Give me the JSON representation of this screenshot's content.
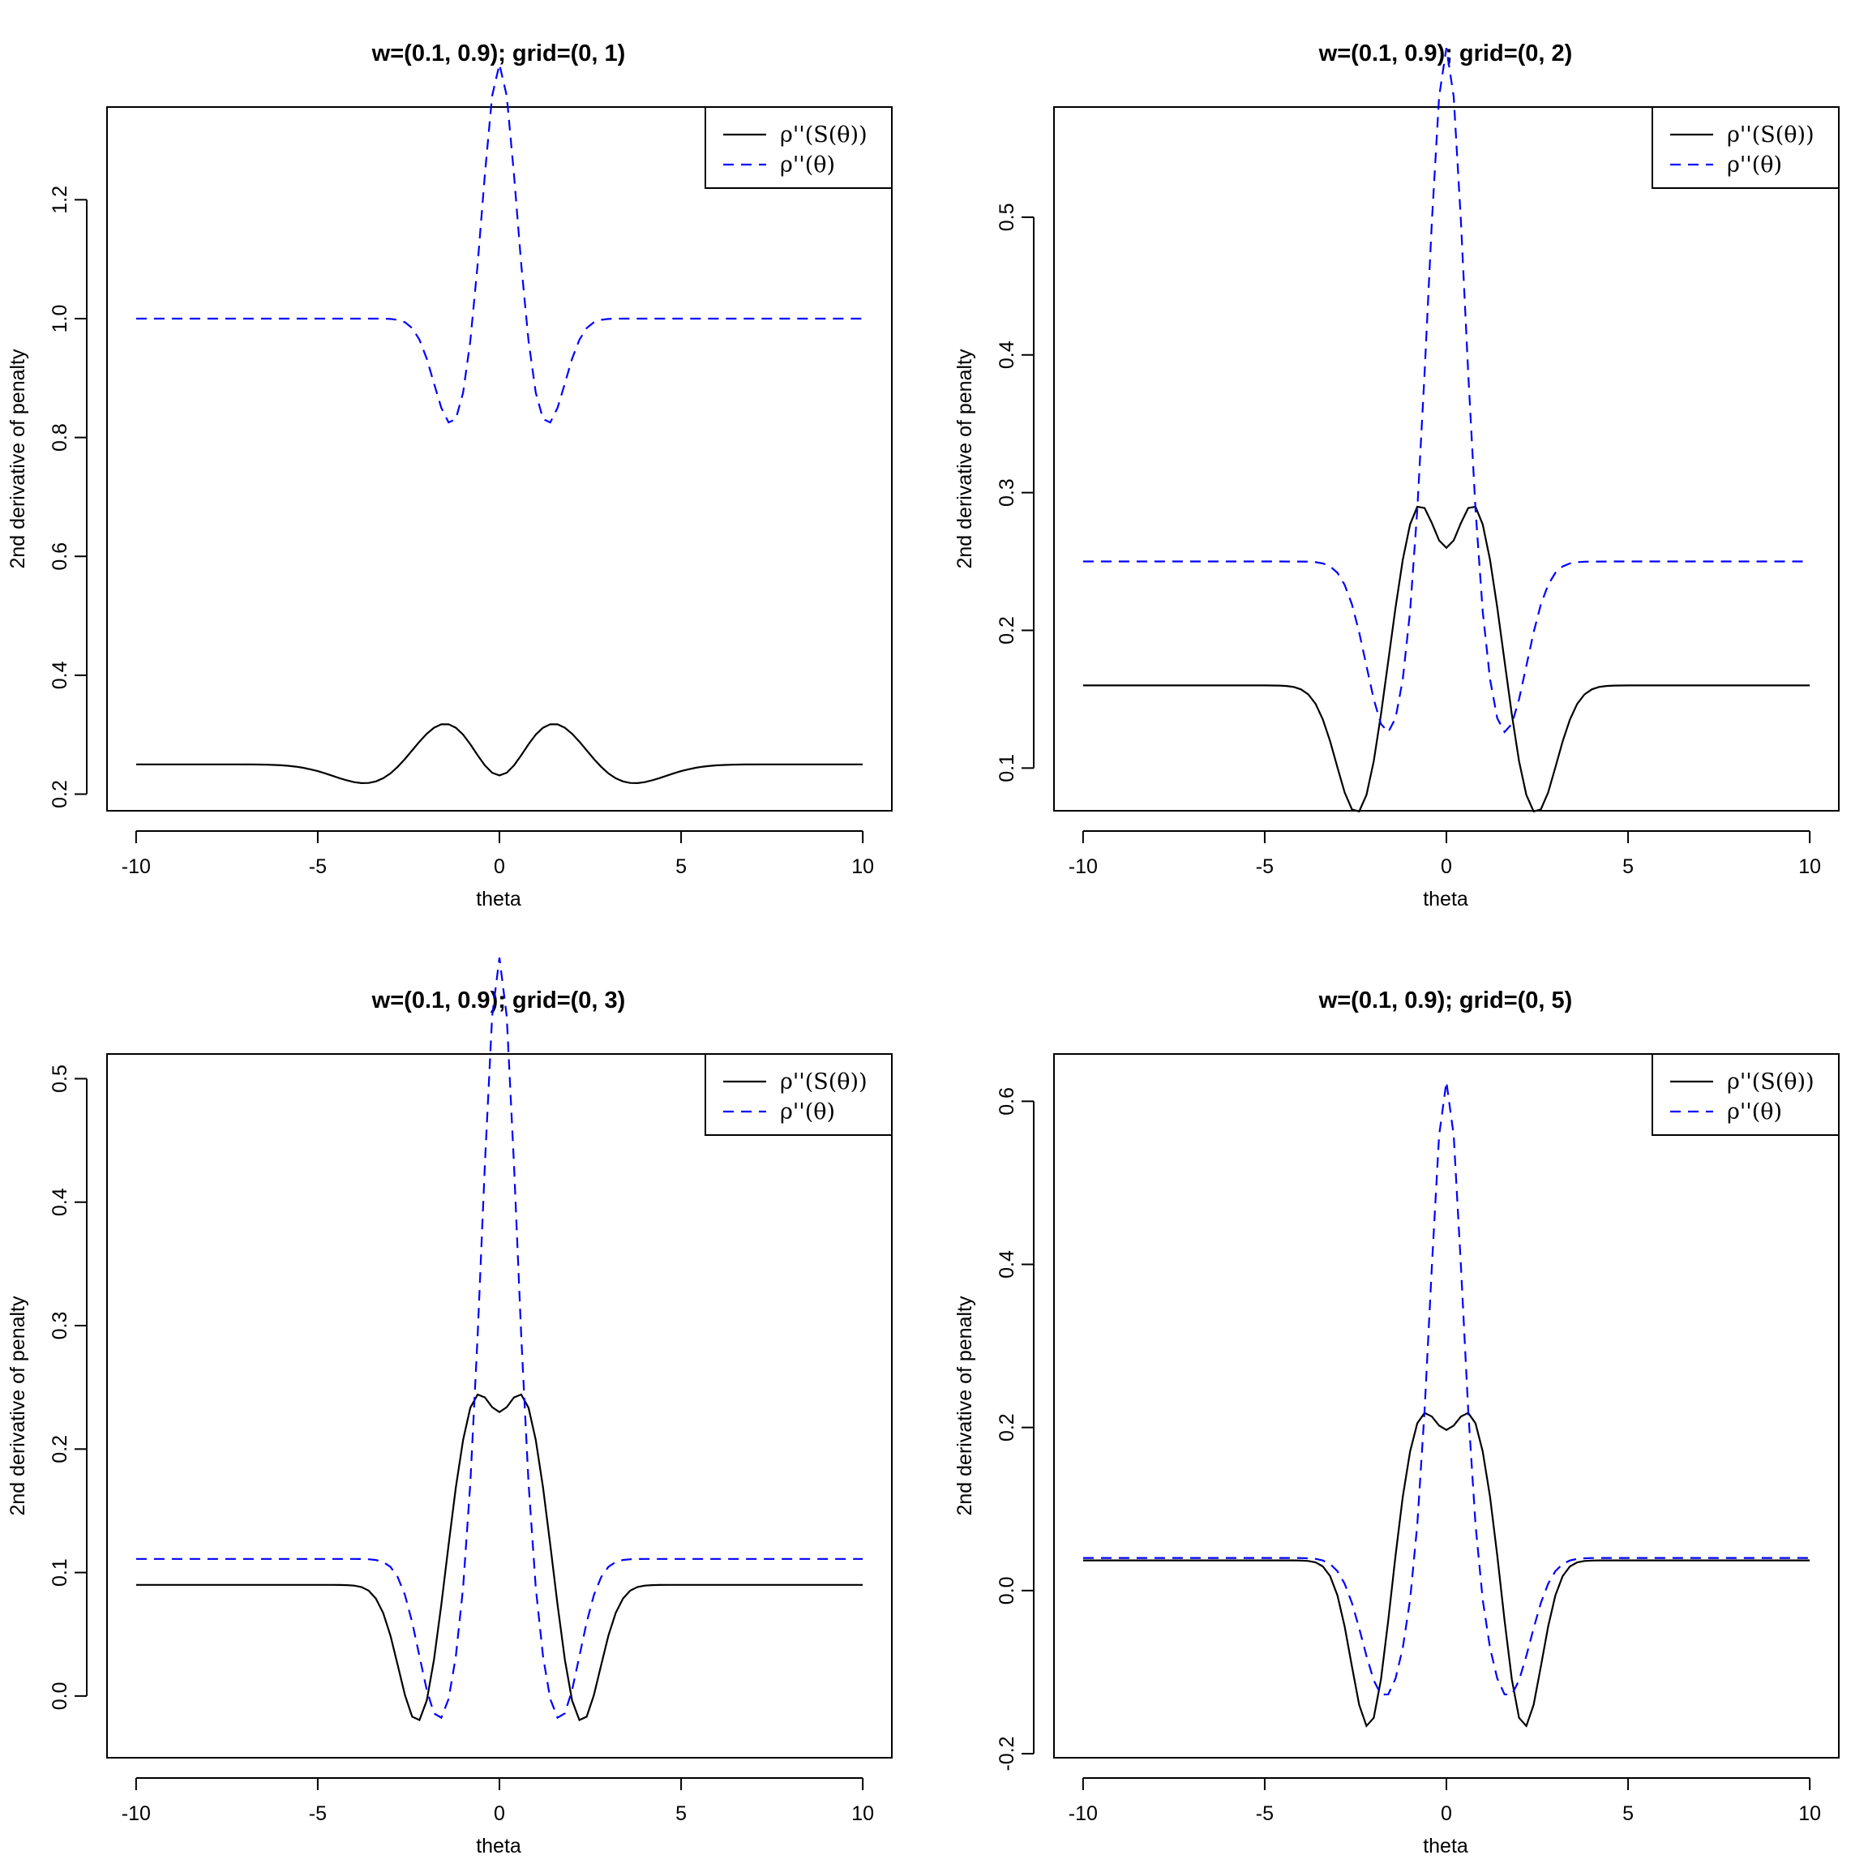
{
  "chart_data": [
    {
      "type": "line",
      "title": "w=(0.1, 0.9); grid=(0, 1)",
      "xlabel": "theta",
      "ylabel": "2nd derivative of penalty",
      "xlim": [
        -10.8,
        10.8
      ],
      "ylim": [
        0.172,
        1.356
      ],
      "xticks": [
        -10,
        -5,
        0,
        5,
        10
      ],
      "yticks": [
        0.2,
        0.4,
        0.6,
        0.8,
        1.0,
        1.2
      ],
      "ytick_labels": [
        "0.2",
        "0.4",
        "0.6",
        "0.8",
        "1.0",
        "1.2"
      ],
      "series": [
        {
          "name": "ρ''(S(θ))",
          "color": "#000000",
          "dash": "solid",
          "y_model": [
            [
              0.25,
              0,
              0
            ],
            [
              -0.035,
              3.5,
              1.0
            ],
            [
              0.075,
              1.5,
              0.85
            ],
            [
              -0.05,
              0,
              0.6
            ]
          ]
        },
        {
          "name": "ρ''(θ)",
          "color": "#0000FF",
          "dash": "dashed",
          "y_model": [
            [
              1.0,
              0,
              0
            ],
            [
              0.44,
              0,
              0.42
            ],
            [
              -0.18,
              1.3,
              0.5
            ]
          ]
        }
      ],
      "legend": {
        "position": "top-right",
        "entries": [
          "ρ''(S(θ))",
          "ρ''(θ)"
        ]
      }
    },
    {
      "type": "line",
      "title": "w=(0.1, 0.9); grid=(0, 2)",
      "xlabel": "theta",
      "ylabel": "2nd derivative of penalty",
      "xlim": [
        -10.8,
        10.8
      ],
      "ylim": [
        0.069,
        0.58
      ],
      "xticks": [
        -10,
        -5,
        0,
        5,
        10
      ],
      "yticks": [
        0.1,
        0.2,
        0.3,
        0.4,
        0.5
      ],
      "ytick_labels": [
        "0.1",
        "0.2",
        "0.3",
        "0.4",
        "0.5"
      ],
      "series": [
        {
          "name": "ρ''(S(θ))",
          "color": "#000000",
          "dash": "solid",
          "y_model": [
            [
              0.16,
              0,
              0
            ],
            [
              -0.1,
              2.4,
              0.6
            ],
            [
              0.3,
              0,
              0.9
            ],
            [
              -0.2,
              0,
              0.55
            ]
          ]
        },
        {
          "name": "ρ''(θ)",
          "color": "#0000FF",
          "dash": "dashed",
          "y_model": [
            [
              0.25,
              0,
              0
            ],
            [
              0.38,
              0,
              0.47
            ],
            [
              -0.125,
              1.6,
              0.6
            ]
          ]
        }
      ],
      "legend": {
        "position": "top-right",
        "entries": [
          "ρ''(S(θ))",
          "ρ''(θ)"
        ]
      }
    },
    {
      "type": "line",
      "title": "w=(0.1, 0.9); grid=(0, 3)",
      "xlabel": "theta",
      "ylabel": "2nd derivative of penalty",
      "xlim": [
        -10.8,
        10.8
      ],
      "ylim": [
        -0.05,
        0.52
      ],
      "xticks": [
        -10,
        -5,
        0,
        5,
        10
      ],
      "yticks": [
        0.0,
        0.1,
        0.2,
        0.3,
        0.4,
        0.5
      ],
      "ytick_labels": [
        "0.0",
        "0.1",
        "0.2",
        "0.3",
        "0.4",
        "0.5"
      ],
      "series": [
        {
          "name": "ρ''(S(θ))",
          "color": "#000000",
          "dash": "solid",
          "y_model": [
            [
              0.09,
              0,
              0
            ],
            [
              -0.12,
              2.2,
              0.55
            ],
            [
              0.3,
              0,
              0.85
            ],
            [
              -0.16,
              0,
              0.5
            ]
          ]
        },
        {
          "name": "ρ''(θ)",
          "color": "#0000FF",
          "dash": "dashed",
          "y_model": [
            [
              0.111,
              0,
              0
            ],
            [
              0.49,
              0,
              0.45
            ],
            [
              -0.13,
              1.65,
              0.55
            ]
          ]
        }
      ],
      "legend": {
        "position": "top-right",
        "entries": [
          "ρ''(S(θ))",
          "ρ''(θ)"
        ]
      }
    },
    {
      "type": "line",
      "title": "w=(0.1, 0.9); grid=(0, 5)",
      "xlabel": "theta",
      "ylabel": "2nd derivative of penalty",
      "xlim": [
        -10.8,
        10.8
      ],
      "ylim": [
        -0.205,
        0.658
      ],
      "xticks": [
        -10,
        -5,
        0,
        5,
        10
      ],
      "yticks": [
        -0.2,
        0.0,
        0.2,
        0.4,
        0.6
      ],
      "ytick_labels": [
        "-0.2",
        "0.0",
        "0.2",
        "0.4",
        "0.6"
      ],
      "series": [
        {
          "name": "ρ''(S(θ))",
          "color": "#000000",
          "dash": "solid",
          "y_model": [
            [
              0.037,
              0,
              0
            ],
            [
              -0.22,
              2.1,
              0.5
            ],
            [
              0.36,
              0,
              0.85
            ],
            [
              -0.2,
              0,
              0.5
            ]
          ]
        },
        {
          "name": "ρ''(θ)",
          "color": "#0000FF",
          "dash": "dashed",
          "y_model": [
            [
              0.04,
              0,
              0
            ],
            [
              0.59,
              0,
              0.42
            ],
            [
              -0.17,
              1.7,
              0.6
            ]
          ]
        }
      ],
      "legend": {
        "position": "top-right",
        "entries": [
          "ρ''(S(θ))",
          "ρ''(θ)"
        ]
      }
    }
  ]
}
